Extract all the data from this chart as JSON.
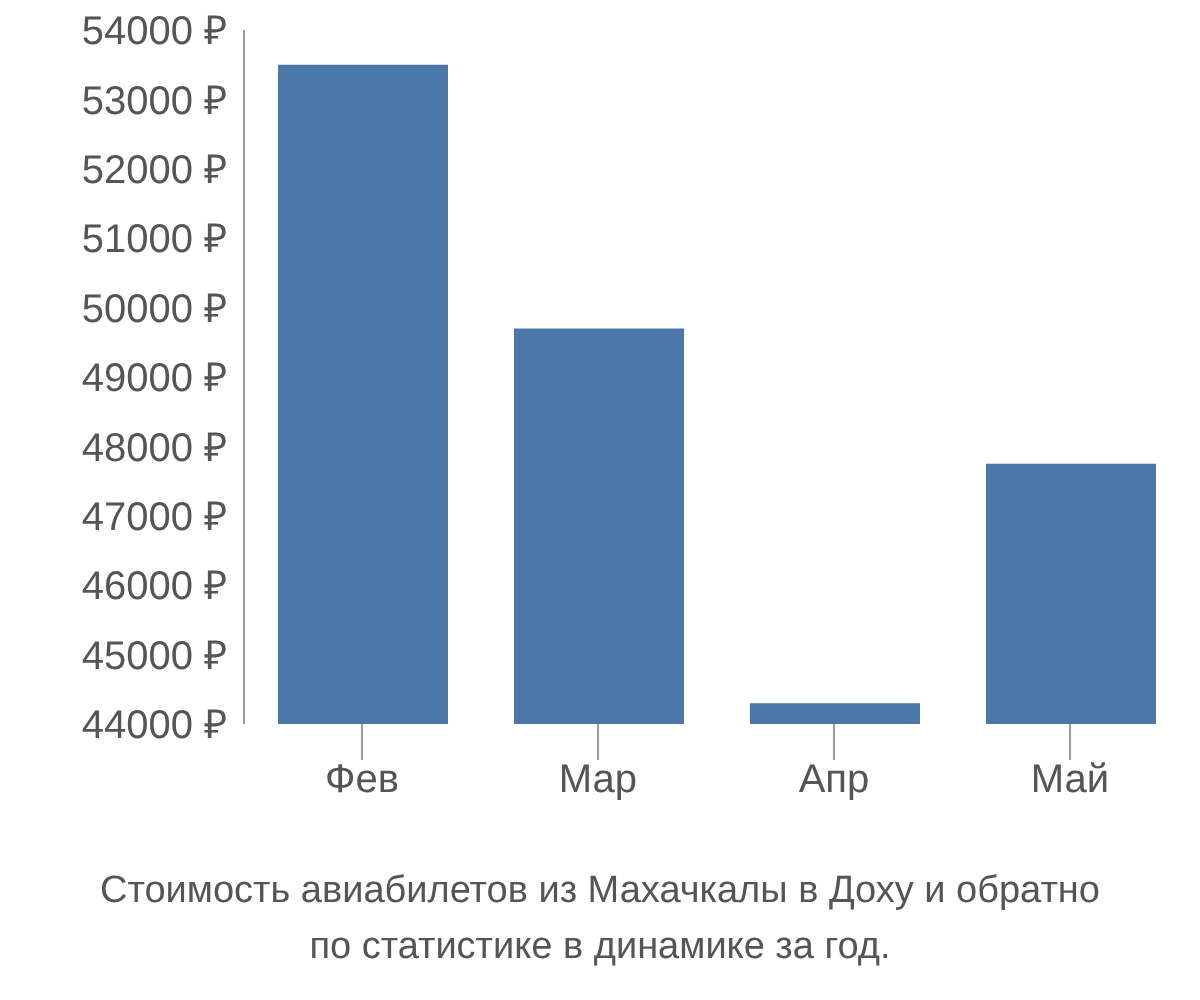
{
  "chart_data": {
    "type": "bar",
    "categories": [
      "Фев",
      "Мар",
      "Апр",
      "Май"
    ],
    "values": [
      53500,
      49700,
      44300,
      47750
    ],
    "color": "#4a76a8",
    "ylim": [
      44000,
      54000
    ],
    "yticks": [
      {
        "value": 44000,
        "label": "44000 ₽"
      },
      {
        "value": 45000,
        "label": "45000 ₽"
      },
      {
        "value": 46000,
        "label": "46000 ₽"
      },
      {
        "value": 47000,
        "label": "47000 ₽"
      },
      {
        "value": 48000,
        "label": "48000 ₽"
      },
      {
        "value": 49000,
        "label": "49000 ₽"
      },
      {
        "value": 50000,
        "label": "50000 ₽"
      },
      {
        "value": 51000,
        "label": "51000 ₽"
      },
      {
        "value": 52000,
        "label": "52000 ₽"
      },
      {
        "value": 53000,
        "label": "53000 ₽"
      },
      {
        "value": 54000,
        "label": "54000 ₽"
      }
    ],
    "grid": false,
    "legend": false,
    "annotations": [
      "Стоимость авиабилетов из Махачкалы в Доху и обратно",
      "по статистике в динамике за год."
    ]
  }
}
